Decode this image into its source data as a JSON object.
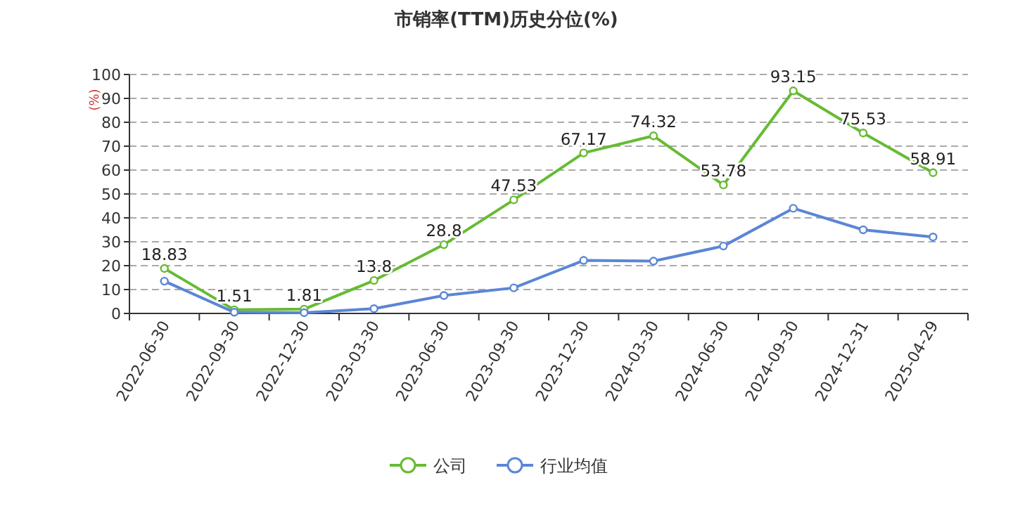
{
  "chart_data": {
    "type": "line",
    "title": "市销率(TTM)历史分位(%)",
    "ylabel": "(%)",
    "categories": [
      "2022-06-30",
      "2022-09-30",
      "2022-12-30",
      "2023-03-30",
      "2023-06-30",
      "2023-09-30",
      "2023-12-30",
      "2024-03-30",
      "2024-06-30",
      "2024-09-30",
      "2024-12-31",
      "2025-04-29"
    ],
    "series": [
      {
        "name": "公司",
        "color": "#66bb33",
        "values": [
          18.83,
          1.51,
          1.81,
          13.8,
          28.8,
          47.53,
          67.17,
          74.32,
          53.78,
          93.15,
          75.53,
          58.91
        ],
        "value_labels": [
          "18.83",
          "1.51",
          "1.81",
          "13.8",
          "28.8",
          "47.53",
          "67.17",
          "74.32",
          "53.78",
          "93.15",
          "75.53",
          "58.91"
        ]
      },
      {
        "name": "行业均值",
        "color": "#5b86d6",
        "values": [
          13.5,
          0.5,
          0.3,
          2,
          7.5,
          10.7,
          22.2,
          21.9,
          28.2,
          44,
          35,
          32
        ]
      }
    ],
    "ylim": [
      0,
      100
    ],
    "yticks": [
      0,
      10,
      20,
      30,
      40,
      50,
      60,
      70,
      80,
      90,
      100
    ],
    "grid": "y",
    "legend": "bottom",
    "marker": "circle",
    "line_style": "solid"
  }
}
